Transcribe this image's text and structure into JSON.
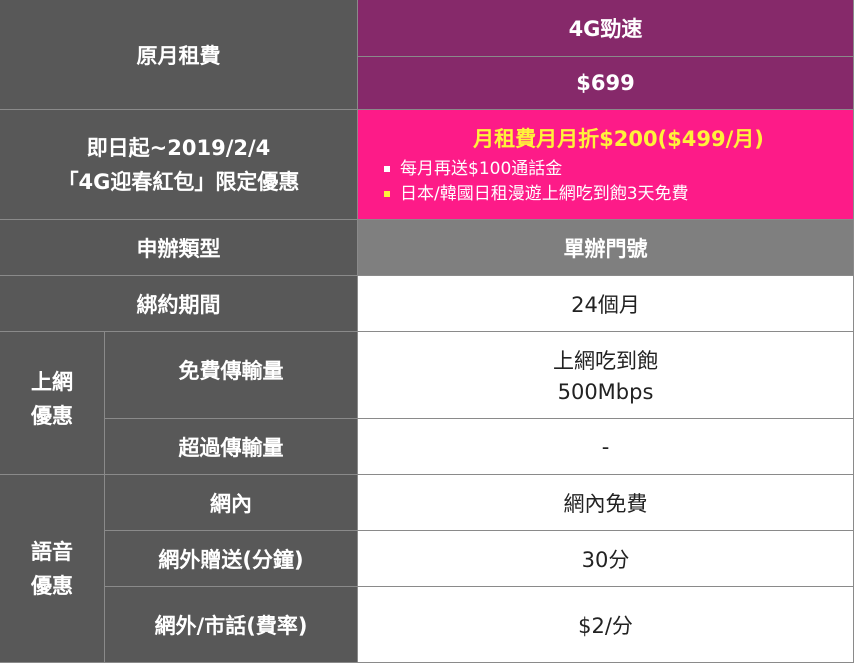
{
  "header": {
    "fee_label": "原月租費",
    "plan_name": "4G勁速",
    "plan_price": "$699"
  },
  "promo": {
    "label_line1": "即日起~2019/2/4",
    "label_line2": "「4G迎春紅包」限定優惠",
    "headline": "月租費月月折$200($499/月)",
    "bullets": [
      {
        "text": "每月再送$100通話金",
        "color": "#ffffff"
      },
      {
        "text": "日本/韓國日租漫遊上網吃到飽3天免費",
        "color": "#fff23a"
      }
    ]
  },
  "rows": {
    "apply_type": {
      "label": "申辦類型",
      "value": "單辦門號"
    },
    "contract": {
      "label": "綁約期間",
      "value": "24個月"
    },
    "data_group": "上網優惠",
    "free_data": {
      "label": "免費傳輸量",
      "value_line1": "上網吃到飽",
      "value_line2": "500Mbps"
    },
    "over_data": {
      "label": "超過傳輸量",
      "value": "-"
    },
    "voice_group": "語音優惠",
    "on_net": {
      "label": "網內",
      "value": "網內免費"
    },
    "off_net_free": {
      "label": "網外贈送(分鐘)",
      "value": "30分"
    },
    "off_net_rate": {
      "label": "網外/市話(費率)",
      "value": "$2/分"
    }
  },
  "colors": {
    "dark": "#585858",
    "purple": "#86296a",
    "pink": "#fd1b88",
    "gray": "#7f7f7f",
    "headline": "#fff23a"
  }
}
